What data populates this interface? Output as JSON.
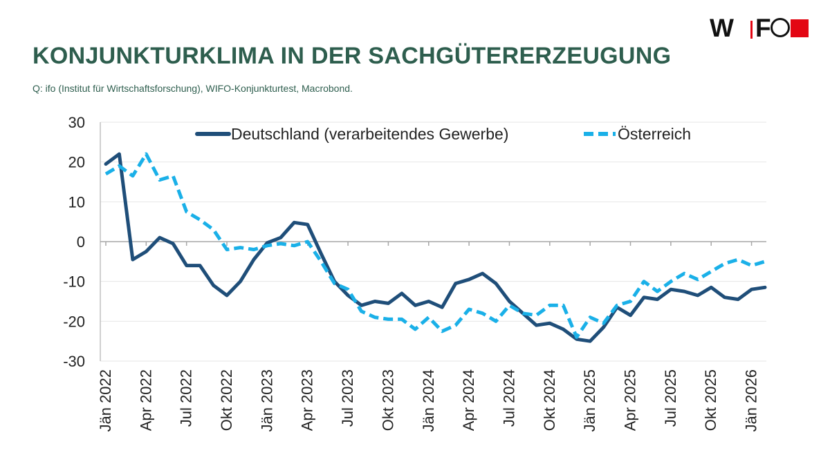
{
  "header": {
    "title": "KONJUNKTURKLIMA IN DER SACHGÜTERERZEUGUNG",
    "source": "Q: ifo (Institut für Wirtschaftsforschung), WIFO-Konjunkturtest, Macrobond."
  },
  "logo": {
    "text": "WIFO",
    "brand_red": "#e30613"
  },
  "chart_data": {
    "type": "line",
    "title": "",
    "xlabel": "",
    "ylabel": "",
    "ylim": [
      -30,
      30
    ],
    "yticks": [
      30,
      20,
      10,
      0,
      -10,
      -20,
      -30
    ],
    "grid": true,
    "legend_position": "top",
    "x": [
      "Jän 2022",
      "Feb 2022",
      "Mär 2022",
      "Apr 2022",
      "Mai 2022",
      "Jun 2022",
      "Jul 2022",
      "Aug 2022",
      "Sep 2022",
      "Okt 2022",
      "Nov 2022",
      "Dez 2022",
      "Jän 2023",
      "Feb 2023",
      "Mär 2023",
      "Apr 2023",
      "Mai 2023",
      "Jun 2023",
      "Jul 2023",
      "Aug 2023",
      "Sep 2023",
      "Okt 2023",
      "Nov 2023",
      "Dez 2023",
      "Jän 2024",
      "Feb 2024",
      "Mär 2024",
      "Apr 2024",
      "Mai 2024",
      "Jun 2024",
      "Jul 2024",
      "Aug 2024",
      "Sep 2024",
      "Okt 2024",
      "Nov 2024",
      "Dez 2024",
      "Jän 2025",
      "Feb 2025",
      "Mär 2025",
      "Apr 2025",
      "Mai 2025",
      "Jun 2025",
      "Jul 2025",
      "Aug 2025",
      "Sep 2025",
      "Okt 2025",
      "Nov 2025",
      "Dez 2025",
      "Jän 2026",
      "Feb 2026"
    ],
    "tick_labels": [
      "Jän 2022",
      "Apr 2022",
      "Jul 2022",
      "Okt 2022",
      "Jän 2023",
      "Apr 2023",
      "Jul 2023",
      "Okt 2023",
      "Jän 2024",
      "Apr 2024",
      "Jul 2024",
      "Okt 2024",
      "Jän 2025",
      "Apr 2025",
      "Jul 2025",
      "Okt 2025",
      "Jän 2026"
    ],
    "series": [
      {
        "name": "Deutschland (verarbeitendes Gewerbe)",
        "color": "#1f4e79",
        "style": "solid",
        "values": [
          19.5,
          22,
          -4.5,
          -2.5,
          1,
          -0.5,
          -6,
          -6,
          -11,
          -13.5,
          -10,
          -4.5,
          -0.3,
          1,
          4.8,
          4.3,
          -3,
          -10,
          -13.5,
          -16,
          -15,
          -15.5,
          -13,
          -16,
          -15,
          -16.5,
          -10.5,
          -9.5,
          -8,
          -10.5,
          -15,
          -18,
          -21,
          -20.5,
          -22,
          -24.5,
          -25,
          -21.5,
          -16.5,
          -18.5,
          -14,
          -14.5,
          -12,
          -12.5,
          -13.5,
          -11.5,
          -14,
          -14.5,
          -12,
          -11.5
        ]
      },
      {
        "name": "Österreich",
        "color": "#1ab0e8",
        "style": "dashed",
        "values": [
          17,
          19,
          16.5,
          22,
          15.5,
          16.5,
          7.5,
          5.5,
          3,
          -2,
          -1.5,
          -2,
          -1,
          -0.5,
          -1,
          0,
          -5,
          -10.5,
          -12,
          -17.5,
          -19,
          -19.5,
          -19.5,
          -22,
          -19,
          -22.5,
          -21,
          -17,
          -18,
          -20,
          -16,
          -18,
          -18.5,
          -16,
          -16,
          -24,
          -19,
          -20.5,
          -16,
          -15,
          -10,
          -12.5,
          -10,
          -8,
          -9.5,
          -7.5,
          -5.5,
          -4.5,
          -6,
          -5
        ]
      }
    ]
  }
}
